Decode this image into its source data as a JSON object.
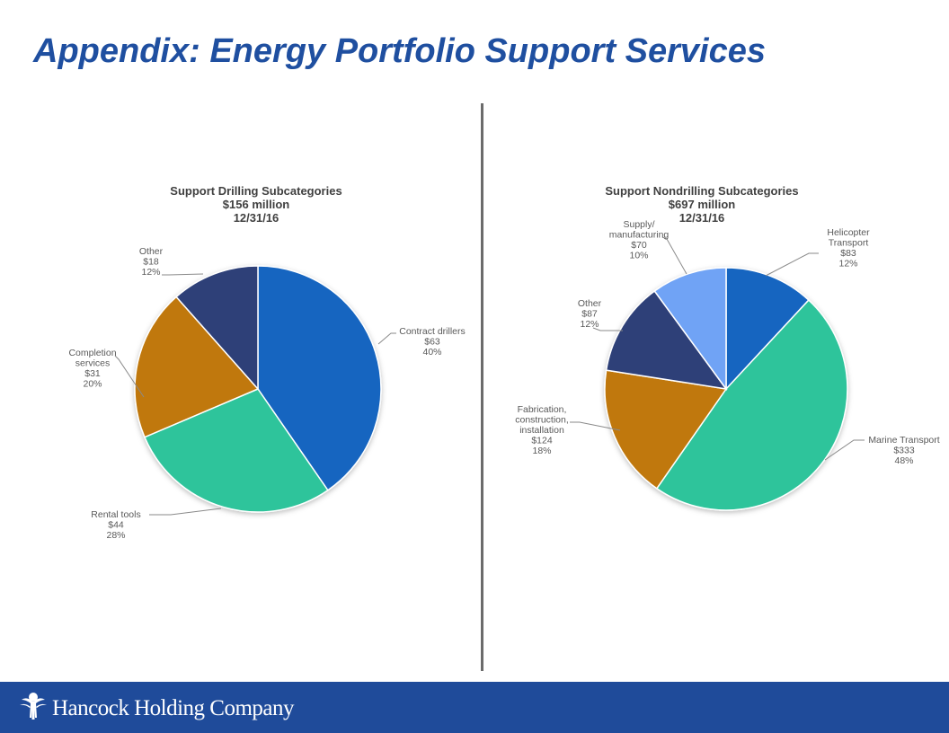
{
  "slide": {
    "title": "Appendix: Energy Portfolio Support Services",
    "footer_company": "Hancock Holding Company",
    "colors": {
      "title": "#1f4fa0",
      "footer_bg": "#1f4b9a",
      "divider": "#6b6b6b"
    }
  },
  "chart_data": [
    {
      "type": "pie",
      "title": "Support Drilling Subcategories",
      "subtitle_lines": [
        "$156 million",
        "12/31/16"
      ],
      "slices": [
        {
          "name": "Contract drillers",
          "value": 63,
          "value_label": "$63",
          "percent": 40,
          "percent_label": "40%",
          "color": "#1565c0"
        },
        {
          "name": "Rental tools",
          "value": 44,
          "value_label": "$44",
          "percent": 28,
          "percent_label": "28%",
          "color": "#2ec49b"
        },
        {
          "name": "Completion services",
          "value": 31,
          "value_label": "$31",
          "percent": 20,
          "percent_label": "20%",
          "color": "#c07808"
        },
        {
          "name": "Other",
          "value": 18,
          "value_label": "$18",
          "percent": 12,
          "percent_label": "12%",
          "color": "#2e3f78"
        }
      ]
    },
    {
      "type": "pie",
      "title": "Support Nondrilling Subcategories",
      "subtitle_lines": [
        "$697 million",
        "12/31/16"
      ],
      "slices": [
        {
          "name": "Helicopter Transport",
          "value": 83,
          "value_label": "$83",
          "percent": 12,
          "percent_label": "12%",
          "color": "#1565c0"
        },
        {
          "name": "Marine Transport",
          "value": 333,
          "value_label": "$333",
          "percent": 48,
          "percent_label": "48%",
          "color": "#2ec49b"
        },
        {
          "name": "Fabrication, construction, installation",
          "value": 124,
          "value_label": "$124",
          "percent": 18,
          "percent_label": "18%",
          "color": "#c07808"
        },
        {
          "name": "Other",
          "value": 87,
          "value_label": "$87",
          "percent": 12,
          "percent_label": "12%",
          "color": "#2e3f78"
        },
        {
          "name": "Supply/ manufacturing",
          "value": 70,
          "value_label": "$70",
          "percent": 10,
          "percent_label": "10%",
          "color": "#6fa3f5"
        }
      ]
    }
  ]
}
